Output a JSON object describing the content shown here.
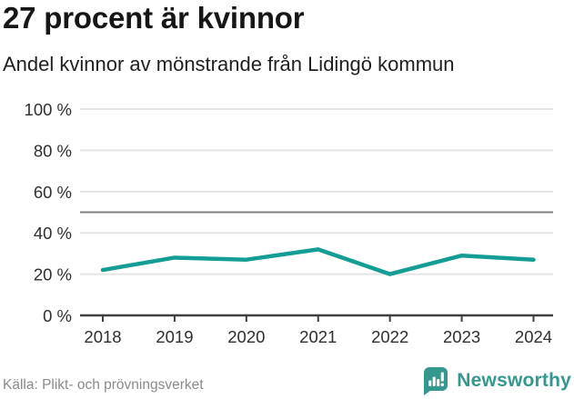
{
  "header": {
    "title": "27 procent är kvinnor",
    "subtitle": "Andel kvinnor av mönstrande från Lidingö kommun"
  },
  "chart_data": {
    "type": "line",
    "title": "27 procent är kvinnor",
    "subtitle": "Andel kvinnor av mönstrande från Lidingö kommun",
    "categories": [
      "2018",
      "2019",
      "2020",
      "2021",
      "2022",
      "2023",
      "2024"
    ],
    "series": [
      {
        "name": "Andel kvinnor av mönstrande",
        "values": [
          22,
          28,
          27,
          32,
          20,
          29,
          27
        ]
      }
    ],
    "unit": "%",
    "xlabel": "",
    "ylabel": "",
    "ylim": [
      0,
      100
    ],
    "yticks": [
      0,
      20,
      40,
      60,
      80,
      100
    ],
    "ytick_suffix": " %",
    "reference_line": 50,
    "grid": "horizontal",
    "legend": "none",
    "line_color": "#149d94",
    "reference_line_color": "#7f7f7f",
    "gridline_color": "#e4e4e4",
    "axis_color": "#3f3f3f"
  },
  "footer": {
    "source": "Källa: Plikt- och prövningsverket",
    "brand": "Newsworthy",
    "brand_color": "#35988f"
  }
}
